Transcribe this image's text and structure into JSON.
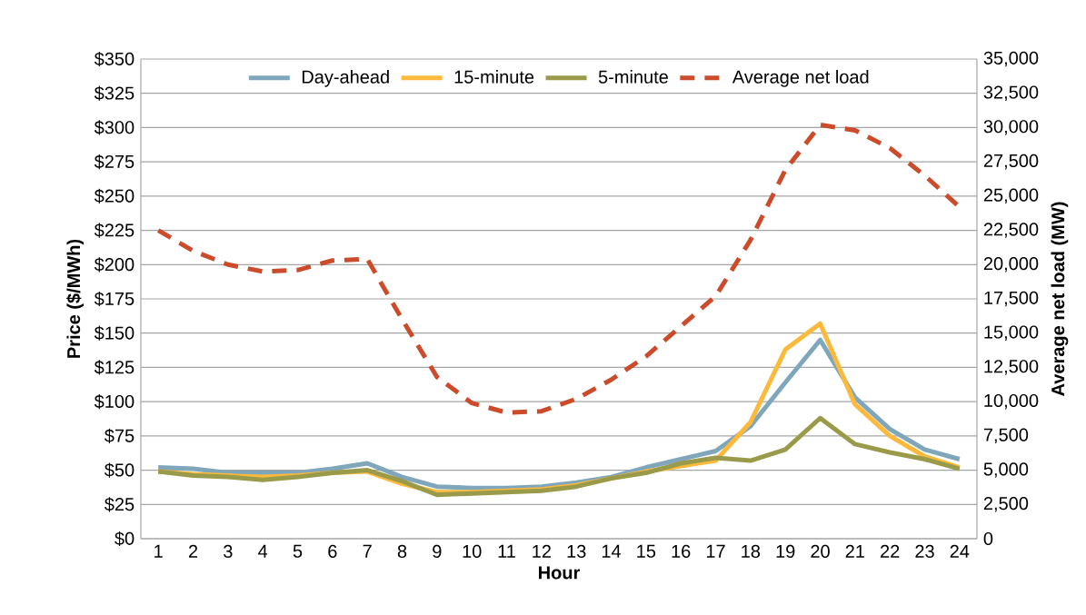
{
  "chart_data": {
    "type": "line",
    "xlabel": "Hour",
    "ylabel": "Price ($/MWh)",
    "y2label": "Average net load (MW)",
    "categories": [
      "1",
      "2",
      "3",
      "4",
      "5",
      "6",
      "7",
      "8",
      "9",
      "10",
      "11",
      "12",
      "13",
      "14",
      "15",
      "16",
      "17",
      "18",
      "19",
      "20",
      "21",
      "22",
      "23",
      "24"
    ],
    "series": [
      {
        "name": "Day-ahead",
        "color": "#7fa6ba",
        "values": [
          52,
          51,
          48,
          48,
          48,
          51,
          55,
          45,
          38,
          37,
          37,
          38,
          41,
          45,
          52,
          58,
          64,
          82,
          114,
          145,
          103,
          80,
          65,
          58
        ]
      },
      {
        "name": "15-minute",
        "color": "#fcb93b",
        "values": [
          49,
          47,
          46,
          45,
          46,
          48,
          49,
          40,
          34,
          34,
          35,
          36,
          39,
          44,
          49,
          53,
          57,
          85,
          138,
          157,
          98,
          75,
          60,
          52
        ]
      },
      {
        "name": "5-minute",
        "color": "#9a9b4a",
        "values": [
          49,
          46,
          45,
          43,
          45,
          48,
          50,
          42,
          32,
          33,
          34,
          35,
          38,
          44,
          48,
          55,
          59,
          57,
          65,
          88,
          69,
          63,
          58,
          51
        ]
      },
      {
        "name": "Average net load",
        "color": "#cc4b2b",
        "axis": "y2",
        "line_style": "dashed",
        "values": [
          22500,
          21000,
          20000,
          19500,
          19600,
          20300,
          20400,
          16000,
          11800,
          9900,
          9200,
          9300,
          10200,
          11600,
          13300,
          15500,
          17700,
          21800,
          26900,
          30200,
          29800,
          28500,
          26500,
          24200
        ]
      }
    ],
    "ylim": [
      0,
      350
    ],
    "yticks": [
      {
        "value": 0,
        "label": "$0"
      },
      {
        "value": 25,
        "label": "$25"
      },
      {
        "value": 50,
        "label": "$50"
      },
      {
        "value": 75,
        "label": "$75"
      },
      {
        "value": 100,
        "label": "$100"
      },
      {
        "value": 125,
        "label": "$125"
      },
      {
        "value": 150,
        "label": "$150"
      },
      {
        "value": 175,
        "label": "$175"
      },
      {
        "value": 200,
        "label": "$200"
      },
      {
        "value": 225,
        "label": "$225"
      },
      {
        "value": 250,
        "label": "$250"
      },
      {
        "value": 275,
        "label": "$275"
      },
      {
        "value": 300,
        "label": "$300"
      },
      {
        "value": 325,
        "label": "$325"
      },
      {
        "value": 350,
        "label": "$350"
      }
    ],
    "y2lim": [
      0,
      35000
    ],
    "y2ticks": [
      0,
      {
        "value": 2500,
        "label": "2,500"
      },
      {
        "value": 5000,
        "label": "5,000"
      },
      {
        "value": 7500,
        "label": "7,500"
      },
      {
        "value": 10000,
        "label": "10,000"
      },
      {
        "value": 12500,
        "label": "12,500"
      },
      {
        "value": 15000,
        "label": "15,000"
      },
      {
        "value": 17500,
        "label": "17,500"
      },
      {
        "value": 20000,
        "label": "20,000"
      },
      {
        "value": 22500,
        "label": "22,500"
      },
      {
        "value": 25000,
        "label": "25,000"
      },
      {
        "value": 27500,
        "label": "27,500"
      },
      {
        "value": 30000,
        "label": "30,000"
      },
      {
        "value": 32500,
        "label": "32,500"
      },
      {
        "value": 35000,
        "label": "35,000"
      }
    ],
    "grid": "y",
    "legend": "top",
    "marker": "none",
    "line_style": "solid"
  }
}
